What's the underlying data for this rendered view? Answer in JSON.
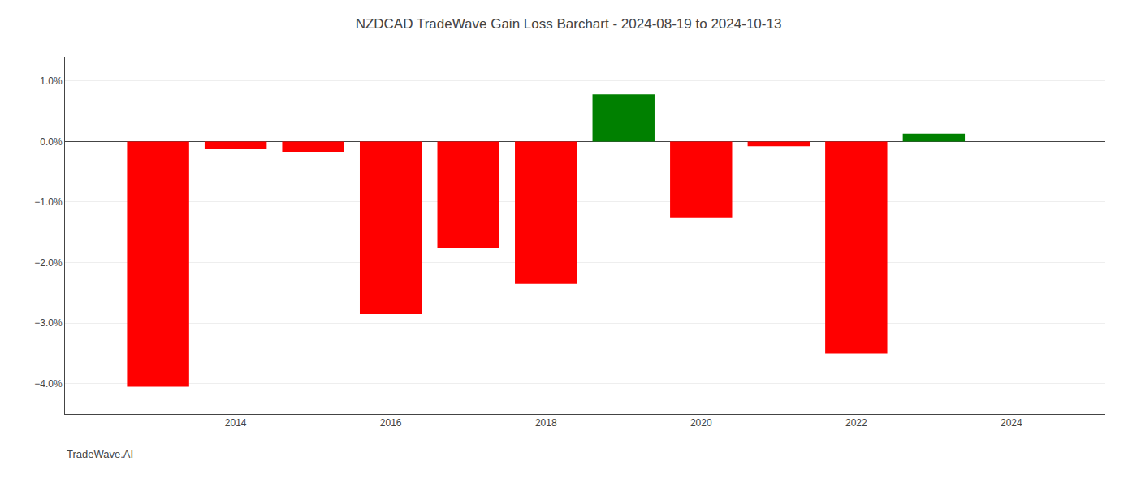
{
  "chart_data": {
    "type": "bar",
    "title": "NZDCAD TradeWave Gain Loss Barchart - 2024-08-19 to 2024-10-13",
    "annotations": [
      "TradeWave.AI"
    ],
    "x": [
      2013,
      2014,
      2015,
      2016,
      2017,
      2018,
      2019,
      2020,
      2021,
      2022,
      2023
    ],
    "values": [
      -4.05,
      -0.13,
      -0.17,
      -2.85,
      -1.75,
      -2.35,
      0.78,
      -1.25,
      -0.08,
      -3.5,
      0.13
    ],
    "colors": [
      "#ff0000",
      "#ff0000",
      "#ff0000",
      "#ff0000",
      "#ff0000",
      "#ff0000",
      "#008000",
      "#ff0000",
      "#ff0000",
      "#ff0000",
      "#008000"
    ],
    "xlim": [
      2011.8,
      2025.2
    ],
    "xticks": [
      2014,
      2016,
      2018,
      2020,
      2022,
      2024
    ],
    "ylim": [
      -4.5,
      1.4
    ],
    "yticks": [
      {
        "value": -4.0,
        "label": "−4.0%"
      },
      {
        "value": -3.0,
        "label": "−3.0%"
      },
      {
        "value": -2.0,
        "label": "−2.0%"
      },
      {
        "value": -1.0,
        "label": "−1.0%"
      },
      {
        "value": 0.0,
        "label": "0.0%"
      },
      {
        "value": 1.0,
        "label": "1.0%"
      }
    ],
    "grid": true
  }
}
